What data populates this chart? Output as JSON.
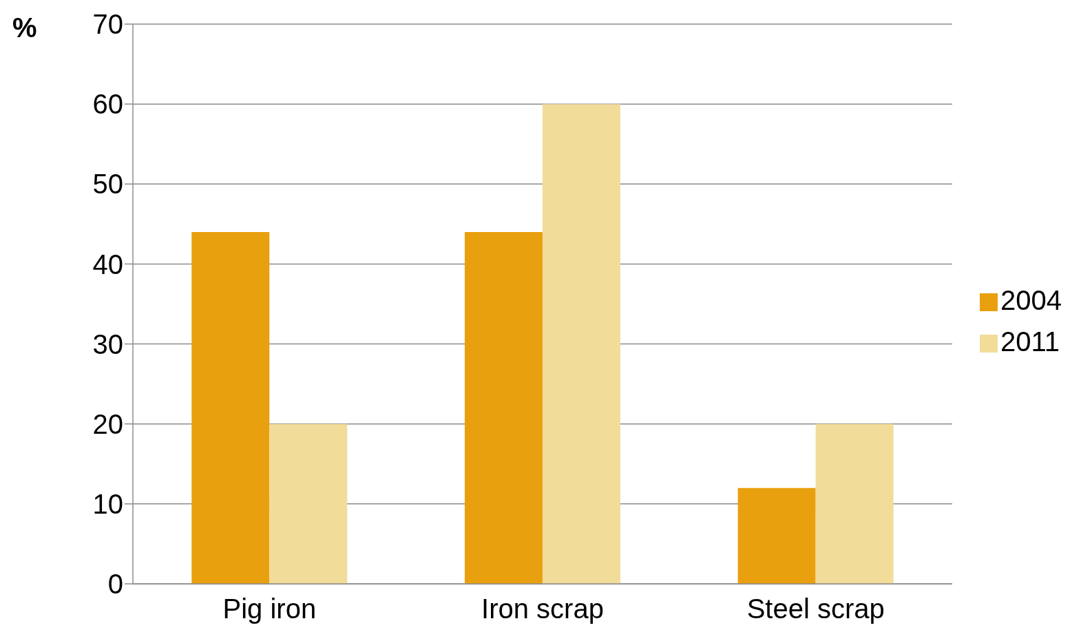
{
  "chart_data": {
    "type": "bar",
    "ylabel": "%",
    "categories": [
      "Pig iron",
      "Iron scrap",
      "Steel scrap"
    ],
    "series": [
      {
        "name": "2004",
        "color": "#e9a00f",
        "values": [
          44,
          44,
          12
        ]
      },
      {
        "name": "2011",
        "color": "#f2dc9a",
        "values": [
          20,
          60,
          20
        ]
      }
    ],
    "ylim": [
      0,
      70
    ],
    "yticks": [
      0,
      10,
      20,
      30,
      40,
      50,
      60,
      70
    ],
    "grid": "y",
    "legend": "right"
  }
}
